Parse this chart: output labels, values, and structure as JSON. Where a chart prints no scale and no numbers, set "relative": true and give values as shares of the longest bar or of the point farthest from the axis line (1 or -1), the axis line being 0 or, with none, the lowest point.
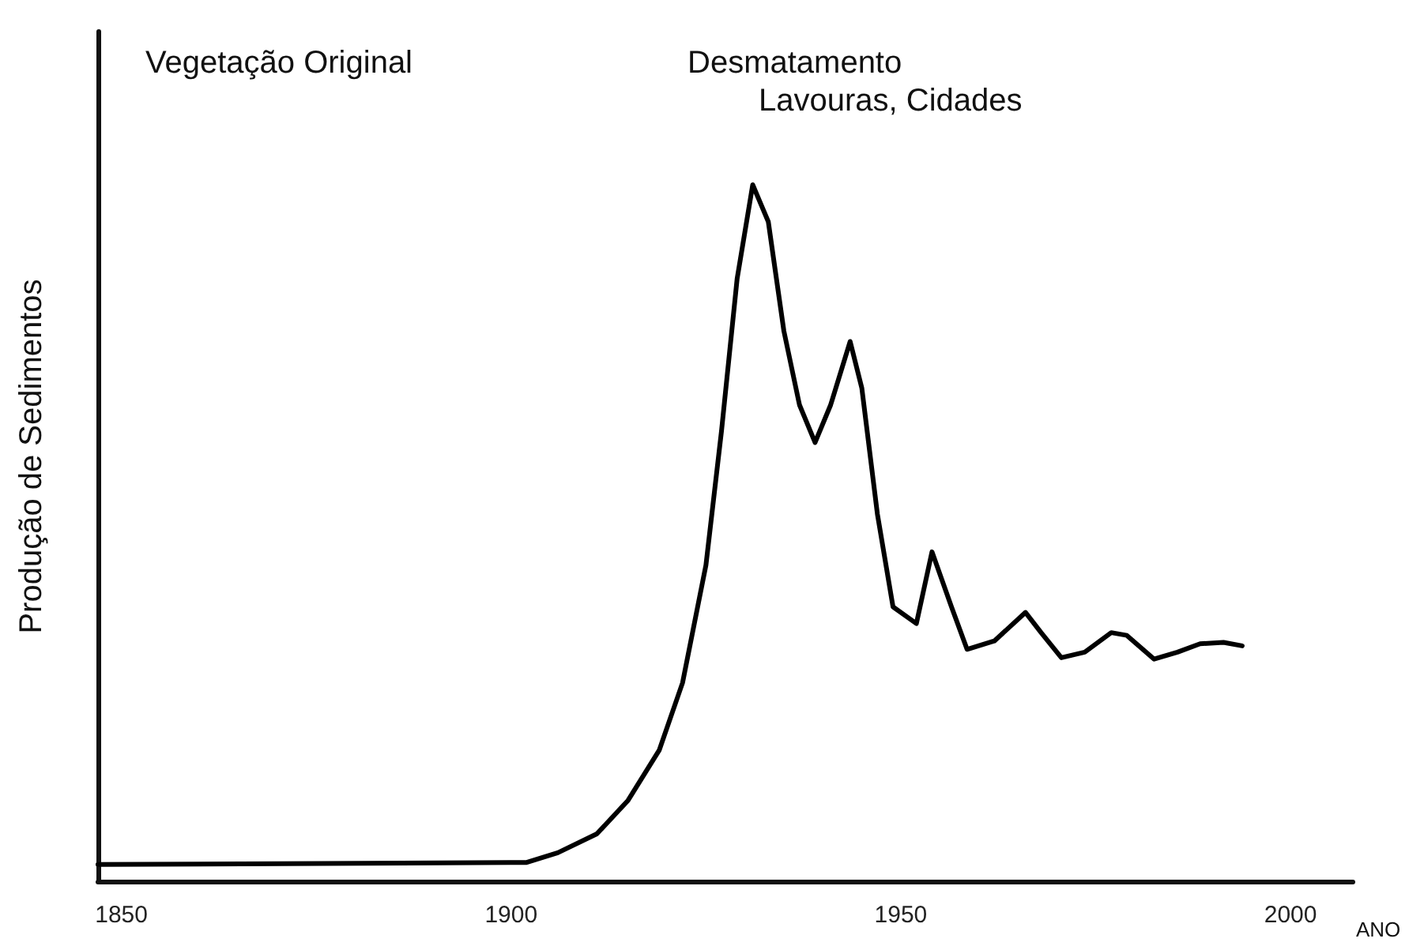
{
  "chart_data": {
    "type": "line",
    "relative": true,
    "xlabel": "ANO",
    "ylabel": "Produção de Sedimentos",
    "annotations": [
      "Vegetação Original",
      "Desmatamento",
      "Lavouras, Cidades"
    ],
    "x": [
      1847,
      1900,
      1902,
      1906,
      1911,
      1915,
      1919,
      1922,
      1925,
      1927,
      1929,
      1931,
      1933,
      1935,
      1937,
      1939,
      1941,
      1943.5,
      1945,
      1947,
      1949,
      1952,
      1954,
      1956.5,
      1958.5,
      1962,
      1966,
      1968,
      1970.6,
      1973.6,
      1977,
      1979,
      1982.5,
      1985.5,
      1988.4,
      1991.4,
      1993.8
    ],
    "series": [
      {
        "color": "#000000",
        "values": [
          0.024,
          0.027,
          0.027,
          0.041,
          0.068,
          0.116,
          0.188,
          0.285,
          0.454,
          0.647,
          0.865,
          1,
          0.947,
          0.79,
          0.684,
          0.63,
          0.684,
          0.775,
          0.708,
          0.527,
          0.394,
          0.37,
          0.473,
          0.394,
          0.333,
          0.345,
          0.386,
          0.357,
          0.321,
          0.329,
          0.357,
          0.353,
          0.319,
          0.329,
          0.341,
          0.343,
          0.338
        ]
      }
    ],
    "xlim": [
      1847,
      2008
    ],
    "xticks": [
      1850,
      1900,
      1950,
      2000
    ],
    "grid": false,
    "marker": "none",
    "line_style": "solid"
  }
}
